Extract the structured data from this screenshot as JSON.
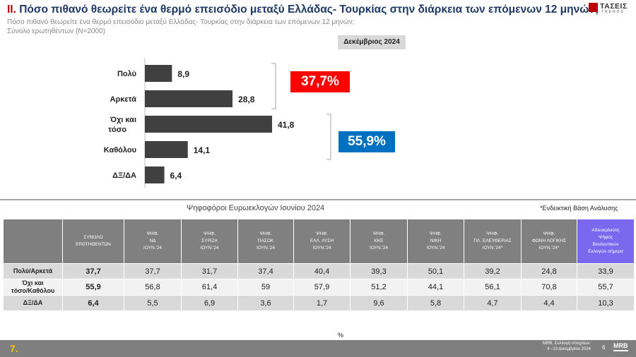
{
  "header": {
    "roman": "II.",
    "title": "Πόσο πιθανό θεωρείτε ένα θερμό επεισόδιο μεταξύ Ελλάδας- Τουρκίας στην διάρκεια των επόμενων 12 μηνών;",
    "subtitle_line1": "Πόσο πιθανό θεωρείτε ένα θερμό επεισόδιο μεταξύ Ελλάδας- Τουρκίας στην διάρκεια των επόμενων 12 μηνών;",
    "subtitle_line2": "Σύνολο ερωτηθέντων (N=2000)",
    "logo_text": "ΤΑΣΕΙΣ",
    "logo_sub": "TRENDS"
  },
  "period_label": "Δεκέμβριος 2024",
  "chart_data": {
    "type": "bar",
    "orientation": "horizontal",
    "categories": [
      "Πολύ",
      "Αρκετά",
      "Όχι και τόσο",
      "Καθόλου",
      "ΔΞ/ΔΑ"
    ],
    "values": [
      8.9,
      28.8,
      41.8,
      14.1,
      6.4
    ],
    "xlim": [
      0,
      41.8
    ],
    "bar_color": "#404040",
    "groups": [
      {
        "label": "37,7%",
        "categories": [
          "Πολύ",
          "Αρκετά"
        ],
        "color": "#ff0000"
      },
      {
        "label": "55,9%",
        "categories": [
          "Όχι και τόσο",
          "Καθόλου"
        ],
        "color": "#0070c0"
      }
    ]
  },
  "table": {
    "title": "Ψηφοφόροι Ευρωεκλογών Ιουνίου 2024",
    "note": "*Ενδεικτική Βάση Ανάλυσης",
    "columns": [
      [
        "ΣΥΝΟΛΟ",
        "ΕΡΩΤΗΘΕΝΤΩΝ"
      ],
      [
        "ΨΗΦ.",
        "ΝΔ",
        "ΙΟΥΝ.'24"
      ],
      [
        "ΨΗΦ.",
        "ΣΥΡΙΖΑ",
        "ΙΟΥΝ.'24"
      ],
      [
        "ΨΗΦ.",
        "ΠΑΣΟΚ",
        "ΙΟΥΝ.'24"
      ],
      [
        "ΨΗΦ.",
        "ΕΛΛ. ΛΥΣΗ",
        "ΙΟΥΝ.'24"
      ],
      [
        "ΨΗΦ.",
        "ΚΚΕ",
        "ΙΟΥΝ.'24"
      ],
      [
        "ΨΗΦ.",
        "ΝΙΚΗ",
        "ΙΟΥΝ.'24"
      ],
      [
        "ΨΗΦ.",
        "ΠΛ. ΕΛΕΥΘΕΡΙΑΣ",
        "ΙΟΥΝ.'24*"
      ],
      [
        "ΨΗΦ.",
        "ΦΩΝΗ ΛΟΓΙΚΗΣ",
        "ΙΟΥΝ.'24*"
      ],
      [
        "Αδιευκρίνιστη",
        "Ψήφος",
        "Βουλευτικών",
        "Εκλογών σήμερα"
      ]
    ],
    "rows": [
      {
        "label": [
          "Πολύ/Αρκετά"
        ],
        "values": [
          "37,7",
          "37,7",
          "31,7",
          "37,4",
          "40,4",
          "39,3",
          "50,1",
          "39,2",
          "24,8",
          "33,9"
        ]
      },
      {
        "label": [
          "Όχι και",
          "τόσο/Καθόλου"
        ],
        "values": [
          "55,9",
          "56,8",
          "61,4",
          "59",
          "57,9",
          "51,2",
          "44,1",
          "56,1",
          "70,8",
          "55,7"
        ]
      },
      {
        "label": [
          "ΔΞ/ΔΑ"
        ],
        "values": [
          "6,4",
          "5,5",
          "6,9",
          "3,6",
          "1,7",
          "9,6",
          "5,8",
          "4,7",
          "4,4",
          "10,3"
        ]
      }
    ]
  },
  "unit": "%",
  "footer": {
    "slide_number": "7.",
    "source_line1": "MRB, Συλλογή στοιχείων:",
    "source_line2": "4 –13 Δεκεμβρίου 2024",
    "page_number": "6",
    "mrb_logo": "MRB"
  }
}
